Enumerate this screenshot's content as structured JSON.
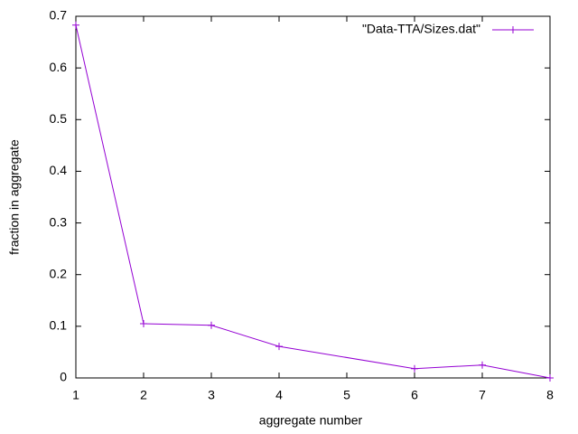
{
  "chart_data": {
    "type": "line",
    "xlabel": "aggregate number",
    "ylabel": "fraction in aggregate",
    "x": [
      1,
      2,
      3,
      4,
      6,
      7,
      8
    ],
    "series": [
      {
        "name": "\"Data-TTA/Sizes.dat\"",
        "color": "#9400d3",
        "values": [
          0.683,
          0.105,
          0.102,
          0.061,
          0.018,
          0.025,
          0
        ]
      }
    ],
    "xlim": [
      1,
      8
    ],
    "xticks": [
      1,
      2,
      3,
      4,
      5,
      6,
      7,
      8
    ],
    "ylim": [
      0,
      0.7
    ],
    "yticks": [
      0,
      0.1,
      0.2,
      0.3,
      0.4,
      0.5,
      0.6,
      0.7
    ],
    "legend": "top-right",
    "grid": false
  }
}
